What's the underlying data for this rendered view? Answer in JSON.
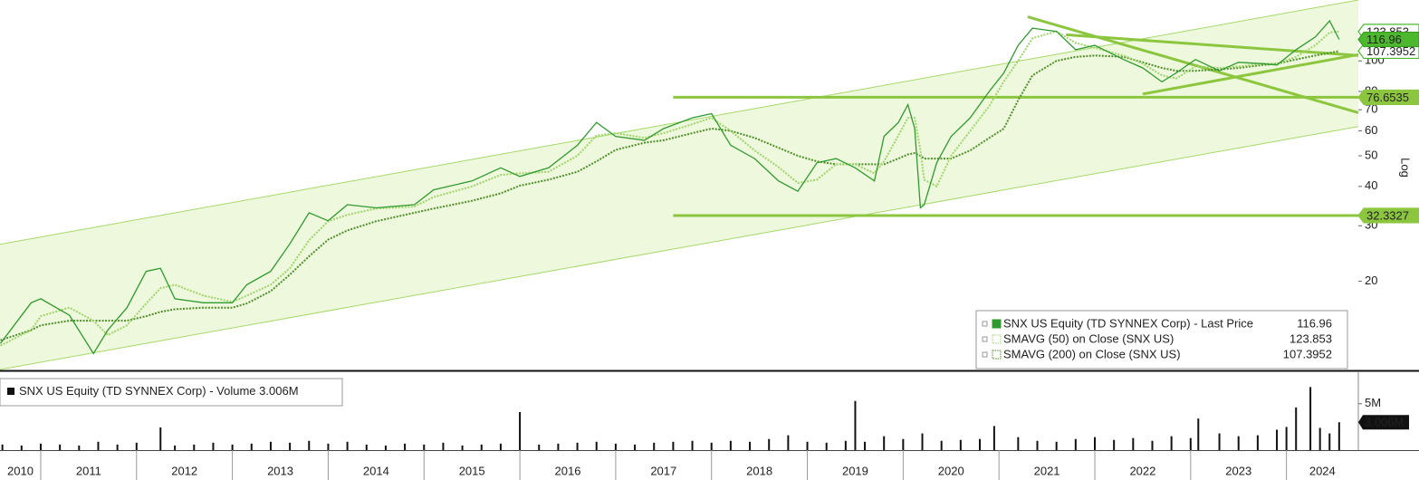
{
  "chart_data": {
    "type": "line",
    "log_scale": true,
    "scale_label": "Log",
    "x": [
      2010.58,
      2010.9,
      2011.0,
      2011.3,
      2011.55,
      2011.7,
      2011.9,
      2012.1,
      2012.25,
      2012.4,
      2012.7,
      2013.0,
      2013.15,
      2013.4,
      2013.6,
      2013.8,
      2014.0,
      2014.2,
      2014.5,
      2014.9,
      2015.1,
      2015.5,
      2015.8,
      2016.0,
      2016.3,
      2016.6,
      2016.8,
      2017.0,
      2017.3,
      2017.5,
      2017.8,
      2018.0,
      2018.2,
      2018.45,
      2018.7,
      2018.9,
      2019.1,
      2019.3,
      2019.5,
      2019.7,
      2019.8,
      2019.95,
      2020.05,
      2020.12,
      2020.18,
      2020.22,
      2020.35,
      2020.5,
      2020.7,
      2020.9,
      2021.05,
      2021.2,
      2021.35,
      2021.6,
      2021.8,
      2022.0,
      2022.3,
      2022.5,
      2022.7,
      2022.85,
      2023.05,
      2023.3,
      2023.5,
      2023.75,
      2023.9,
      2024.1,
      2024.3,
      2024.45,
      2024.55
    ],
    "xlim": [
      2010.575,
      2024.75
    ],
    "xticks": [
      2010,
      2011,
      2012,
      2013,
      2014,
      2015,
      2016,
      2017,
      2018,
      2019,
      2020,
      2021,
      2022,
      2023,
      2024
    ],
    "ylim": [
      10.5,
      156
    ],
    "yticks": [
      20,
      30,
      40,
      50,
      60,
      70,
      80,
      100
    ],
    "series": [
      {
        "name": "SNX US Equity (TD SYNNEX Corp) - Last Price",
        "color": "#2f9a2f",
        "style": "solid",
        "tag_color": "#4cb82e",
        "values": [
          12.7,
          17.1,
          17.6,
          15.6,
          11.8,
          14.0,
          16.5,
          21.5,
          22,
          17.6,
          17.1,
          17.1,
          19.5,
          21.5,
          26.3,
          33,
          31.1,
          35,
          34.2,
          35,
          39,
          41.6,
          45.8,
          43,
          45.8,
          54,
          63.8,
          57.6,
          56,
          61,
          66,
          68,
          54,
          49,
          41.6,
          38.6,
          47.5,
          49,
          45.8,
          41.6,
          57.6,
          63.8,
          72.6,
          61,
          34.2,
          35,
          47.5,
          57.6,
          66,
          80.2,
          91.6,
          112,
          127,
          124,
          108.5,
          112,
          101,
          95,
          85.8,
          91.6,
          101,
          93,
          99,
          98,
          97,
          108.5,
          119,
          134,
          116.96
        ]
      },
      {
        "name": "SMAVG (50)  on Close (SNX US)",
        "color": "#9fd46a",
        "style": "dotted",
        "tag_color": "#ffffff",
        "values": [
          12.5,
          14,
          15.5,
          16.5,
          15,
          13.5,
          14.5,
          17,
          19,
          19.5,
          18,
          17.2,
          18,
          19.5,
          22,
          27,
          31,
          32.5,
          34,
          34.5,
          37,
          40,
          43.5,
          44,
          44.5,
          50,
          58,
          59,
          57,
          59,
          63,
          66,
          60,
          52,
          46,
          41,
          42,
          47,
          47,
          44,
          48,
          58,
          66,
          66,
          52,
          42,
          40,
          50,
          60,
          72,
          86,
          100,
          118,
          124,
          114,
          110,
          104,
          98,
          90,
          88,
          96,
          95,
          96,
          98,
          98,
          103,
          112,
          123,
          123.853
        ]
      },
      {
        "name": "SMAVG (200)  on Close (SNX US)",
        "color": "#4f8f2a",
        "style": "dotted",
        "tag_color": "#ffffff",
        "values": [
          13,
          14,
          14.5,
          15,
          15,
          15,
          15,
          15.5,
          16,
          16.3,
          16.5,
          16.5,
          17,
          18.6,
          21,
          24,
          27.1,
          29,
          31,
          33,
          34,
          36,
          38,
          40.2,
          42,
          44.5,
          48,
          52.2,
          55,
          56,
          59,
          61,
          60,
          57,
          53,
          50,
          48,
          47,
          47,
          47,
          47,
          49,
          50.5,
          51,
          50,
          49,
          49,
          49,
          52,
          57,
          61,
          75,
          90,
          100,
          103,
          104,
          103,
          99,
          95,
          93,
          93,
          94,
          95,
          97,
          98,
          101,
          104,
          106,
          107.3952
        ]
      }
    ],
    "trend_lines": [
      {
        "x": [
          2010.575,
          2024.75
        ],
        "values": [
          26.2,
          156
        ],
        "color": "#a6d96a",
        "width": 1
      },
      {
        "x": [
          2010.575,
          2024.75
        ],
        "values": [
          10.5,
          61.9
        ],
        "color": "#a6d96a",
        "width": 1
      },
      {
        "x": [
          2021.3,
          2024.75
        ],
        "values": [
          138,
          68.5
        ],
        "color": "#8cc63f",
        "width": 3
      },
      {
        "x": [
          2022.5,
          2024.75
        ],
        "values": [
          78.5,
          104.7
        ],
        "color": "#8cc63f",
        "width": 3
      },
      {
        "x": [
          2021.7,
          2024.75
        ],
        "values": [
          121,
          104
        ],
        "color": "#8cc63f",
        "width": 3
      }
    ],
    "channel_fill": "#eef8dc",
    "levels": [
      {
        "value": 76.6535,
        "from": 2017.6,
        "color": "#8cc63f"
      },
      {
        "value": 32.3327,
        "from": 2017.6,
        "color": "#8cc63f"
      }
    ],
    "legend": "bottom-right",
    "volume": {
      "name": "SNX US Equity (TD SYNNEX Corp) - Volume",
      "last_label": "3.006M",
      "color": "#111111",
      "x": [
        2010.6,
        2010.8,
        2011.0,
        2011.2,
        2011.4,
        2011.6,
        2011.8,
        2012.0,
        2012.25,
        2012.4,
        2012.6,
        2012.8,
        2013.0,
        2013.2,
        2013.4,
        2013.6,
        2013.8,
        2014.0,
        2014.2,
        2014.4,
        2014.6,
        2014.8,
        2015.0,
        2015.2,
        2015.4,
        2015.6,
        2015.8,
        2016.0,
        2016.2,
        2016.4,
        2016.6,
        2016.8,
        2017.0,
        2017.2,
        2017.4,
        2017.6,
        2017.8,
        2018.0,
        2018.2,
        2018.4,
        2018.6,
        2018.8,
        2019.0,
        2019.2,
        2019.4,
        2019.5,
        2019.6,
        2019.8,
        2020.0,
        2020.2,
        2020.4,
        2020.6,
        2020.8,
        2020.95,
        2021.2,
        2021.4,
        2021.6,
        2021.8,
        2022.0,
        2022.2,
        2022.4,
        2022.6,
        2022.8,
        2023.0,
        2023.08,
        2023.3,
        2023.5,
        2023.7,
        2023.9,
        2024.0,
        2024.1,
        2024.25,
        2024.35,
        2024.45,
        2024.55
      ],
      "values": [
        0.6,
        0.5,
        0.7,
        0.6,
        0.5,
        0.9,
        0.6,
        0.8,
        2.45,
        0.5,
        0.6,
        0.8,
        0.6,
        0.7,
        0.9,
        0.8,
        1.0,
        0.7,
        0.9,
        0.6,
        0.5,
        0.7,
        0.6,
        0.8,
        0.5,
        0.6,
        0.7,
        4.1,
        0.6,
        0.7,
        0.8,
        0.9,
        0.7,
        0.6,
        0.8,
        0.9,
        1.0,
        0.8,
        1.0,
        0.9,
        1.2,
        1.6,
        0.9,
        0.8,
        1.0,
        5.3,
        0.9,
        1.5,
        1.2,
        1.8,
        1.0,
        1.1,
        1.2,
        2.6,
        1.4,
        1.0,
        0.9,
        1.2,
        1.4,
        1.1,
        1.3,
        1.0,
        1.5,
        1.3,
        3.4,
        1.8,
        1.5,
        1.6,
        2.2,
        2.5,
        4.6,
        6.8,
        2.4,
        1.8,
        3.006
      ],
      "ylim": [
        0,
        8.3
      ],
      "yticks": [
        {
          "value": 5,
          "label": "5M"
        }
      ]
    }
  }
}
